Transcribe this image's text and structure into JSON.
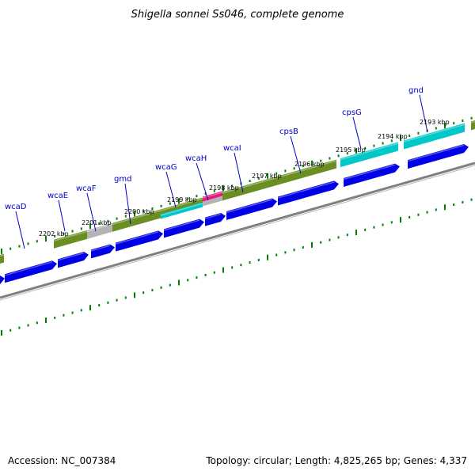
{
  "header": {
    "title": "Shigella sonnei Ss046, complete genome"
  },
  "footer": {
    "accession": "Accession: NC_007384",
    "summary": "Topology: circular; Length: 4,825,265 bp; Genes: 4,337"
  },
  "genes": [
    "wcaD",
    "wcaE",
    "wcaF",
    "gmd",
    "wcaG",
    "wcaH",
    "wcaI",
    "cpsB",
    "cpsG",
    "gnd"
  ],
  "kbp_marks": [
    "2202 kbp",
    "2201 kbp",
    "2200 kbp",
    "2199 kbp",
    "2198 kbp",
    "2197 kbp",
    "2196 kbp",
    "2195 kbp",
    "2194 kbp",
    "2193 kbp"
  ],
  "colors": {
    "cds_forward": "#0000e6",
    "cog_green": "#6b8e23",
    "cog_cyan": "#00c8c8",
    "cog_gray": "#b4b4b4",
    "cog_pink": "#e6197d",
    "backbone": "#808080",
    "tick": "#008000",
    "label": "#0000c8"
  }
}
